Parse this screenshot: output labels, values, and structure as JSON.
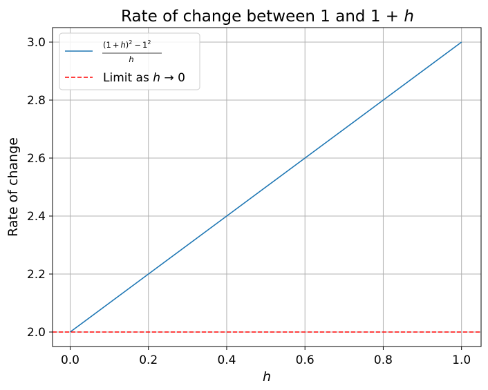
{
  "chart_data": {
    "type": "line",
    "title": {
      "prefix": "Rate of change between 1 and 1",
      "op": " + ",
      "var": "h"
    },
    "xlabel": "h",
    "ylabel": "Rate of change",
    "xlim": [
      -0.045,
      1.05
    ],
    "ylim": [
      1.95,
      3.05
    ],
    "xticks": [
      0.0,
      0.2,
      0.4,
      0.6,
      0.8,
      1.0
    ],
    "xtick_labels": [
      "0.0",
      "0.2",
      "0.4",
      "0.6",
      "0.8",
      "1.0"
    ],
    "yticks": [
      2.0,
      2.2,
      2.4,
      2.6,
      2.8,
      3.0
    ],
    "ytick_labels": [
      "2.0",
      "2.2",
      "2.4",
      "2.6",
      "2.8",
      "3.0"
    ],
    "grid": true,
    "legend_position": "upper-left",
    "series": [
      {
        "name": "(1 + h)^2 - 1^2 over h",
        "legend_numerator": {
          "lparen": "(1",
          "op1": "+",
          "var": "h",
          "rparen": ")",
          "exp1": "2",
          "op2": "−",
          "one": "1",
          "exp2": "2"
        },
        "legend_denominator": "h",
        "color": "#1f77b4",
        "style": "solid",
        "x": [
          0.0,
          0.2,
          0.4,
          0.6,
          0.8,
          1.0
        ],
        "y": [
          2.0,
          2.2,
          2.4,
          2.6,
          2.8,
          3.0
        ]
      },
      {
        "name": "Limit as h → 0",
        "legend_label": {
          "prefix": "Limit as ",
          "var": "h",
          "arrow": " → 0"
        },
        "color": "#ff0000",
        "style": "dashed",
        "hline": 2.0
      }
    ]
  }
}
